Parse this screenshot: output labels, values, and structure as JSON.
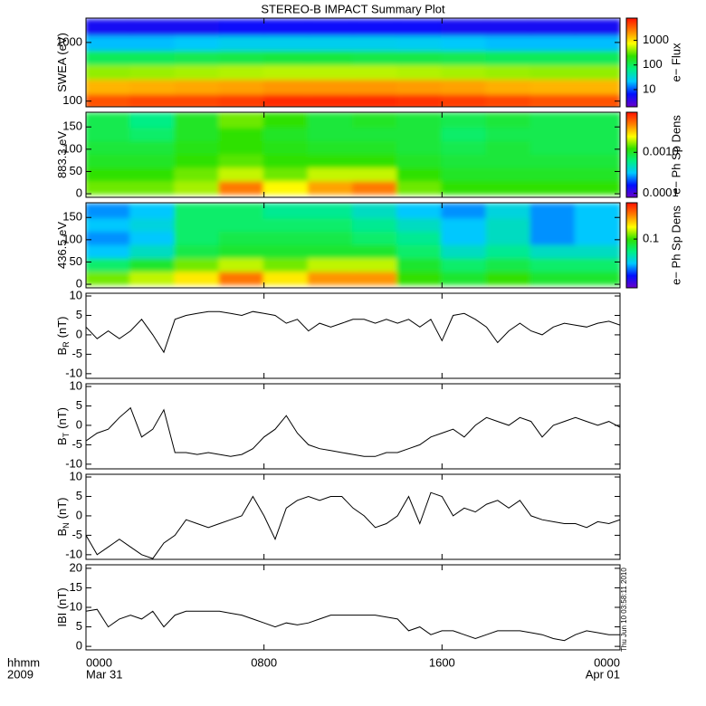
{
  "chart_data": [
    {
      "type": "heatmap",
      "title": "STEREO-B IMPACT Summary Plot",
      "ylabel": "SWEA (eV)",
      "ylog": true,
      "ylim": [
        80,
        2600
      ],
      "yticks": [
        100,
        1000
      ],
      "x": [
        1,
        3,
        5,
        7,
        9,
        11,
        13,
        15,
        17,
        19,
        21,
        23
      ],
      "y": [
        100,
        180,
        320,
        560,
        1000,
        1800
      ],
      "z": [
        [
          4000,
          4500,
          4500,
          5000,
          6000,
          6000,
          6000,
          5500,
          5000,
          4500,
          4000,
          4000
        ],
        [
          1500,
          1600,
          1700,
          1800,
          2000,
          2000,
          2000,
          1900,
          1800,
          1600,
          1500,
          1500
        ],
        [
          400,
          420,
          450,
          480,
          500,
          500,
          500,
          480,
          450,
          420,
          400,
          400
        ],
        [
          100,
          100,
          110,
          120,
          130,
          130,
          120,
          120,
          110,
          100,
          100,
          100
        ],
        [
          20,
          20,
          22,
          25,
          25,
          25,
          25,
          24,
          22,
          20,
          20,
          20
        ],
        [
          5,
          5,
          5,
          6,
          6,
          6,
          6,
          6,
          5,
          5,
          5,
          5
        ]
      ],
      "colorbar": {
        "label": "e− Flux",
        "log": true,
        "clim": [
          2,
          8000
        ],
        "ticks": [
          10,
          100,
          1000
        ]
      },
      "colormap": [
        "#6a00c8",
        "#0010ff",
        "#00c8ff",
        "#00f080",
        "#30e000",
        "#ffff00",
        "#ff8000",
        "#ff1000"
      ]
    },
    {
      "type": "heatmap",
      "ylabel": "883.3 eV",
      "ylim": [
        -8,
        183
      ],
      "yticks": [
        0,
        50,
        100,
        150
      ],
      "x": [
        1,
        3,
        5,
        7,
        9,
        11,
        13,
        15,
        17,
        19,
        21,
        23
      ],
      "y": [
        15,
        45,
        75,
        105,
        135,
        165
      ],
      "z": [
        [
          0.0015,
          0.0015,
          0.0018,
          0.005,
          0.0025,
          0.004,
          0.005,
          0.0015,
          0.0012,
          0.0012,
          0.0012,
          0.0012
        ],
        [
          0.0012,
          0.0012,
          0.0015,
          0.002,
          0.0015,
          0.002,
          0.002,
          0.0012,
          0.001,
          0.001,
          0.001,
          0.001
        ],
        [
          0.001,
          0.001,
          0.0012,
          0.0014,
          0.0012,
          0.0012,
          0.0012,
          0.001,
          0.0009,
          0.0009,
          0.0009,
          0.0009
        ],
        [
          0.0009,
          0.0009,
          0.0011,
          0.0012,
          0.0011,
          0.001,
          0.001,
          0.0009,
          0.0008,
          0.0009,
          0.0008,
          0.0008
        ],
        [
          0.0008,
          0.0007,
          0.001,
          0.0012,
          0.001,
          0.0009,
          0.0009,
          0.0009,
          0.0007,
          0.0008,
          0.0008,
          0.0008
        ],
        [
          0.0008,
          0.0006,
          0.001,
          0.0015,
          0.0012,
          0.0009,
          0.001,
          0.0009,
          0.0008,
          0.0009,
          0.0008,
          0.0008
        ]
      ],
      "colorbar": {
        "label": "e− Ph Sp Dens",
        "log": true,
        "clim": [
          8e-05,
          0.0095
        ],
        "ticks": [
          0.0001,
          {
            "value": 0.001,
            "label": "0.0010"
          }
        ]
      },
      "colormap": [
        "#6a00c8",
        "#0010ff",
        "#00c8ff",
        "#00f080",
        "#30e000",
        "#ffff00",
        "#ff8000",
        "#ff1000"
      ]
    },
    {
      "type": "heatmap",
      "ylabel": "436.5 eV",
      "ylim": [
        -8,
        183
      ],
      "yticks": [
        0,
        50,
        100,
        150
      ],
      "x": [
        1,
        3,
        5,
        7,
        9,
        11,
        13,
        15,
        17,
        19,
        21,
        23
      ],
      "y": [
        15,
        45,
        75,
        105,
        135,
        165
      ],
      "z": [
        [
          0.12,
          0.15,
          0.2,
          0.35,
          0.2,
          0.3,
          0.3,
          0.1,
          0.08,
          0.1,
          0.08,
          0.08
        ],
        [
          0.06,
          0.08,
          0.12,
          0.15,
          0.12,
          0.15,
          0.15,
          0.08,
          0.06,
          0.07,
          0.06,
          0.06
        ],
        [
          0.03,
          0.04,
          0.07,
          0.08,
          0.08,
          0.08,
          0.08,
          0.06,
          0.04,
          0.05,
          0.04,
          0.04
        ],
        [
          0.025,
          0.03,
          0.06,
          0.07,
          0.07,
          0.07,
          0.06,
          0.05,
          0.03,
          0.04,
          0.025,
          0.03
        ],
        [
          0.03,
          0.035,
          0.06,
          0.06,
          0.06,
          0.06,
          0.05,
          0.04,
          0.03,
          0.04,
          0.025,
          0.03
        ],
        [
          0.025,
          0.03,
          0.06,
          0.06,
          0.05,
          0.05,
          0.04,
          0.03,
          0.025,
          0.035,
          0.025,
          0.03
        ]
      ],
      "colorbar": {
        "label": "e− Ph Sp Dens",
        "log": true,
        "clim": [
          0.009,
          0.6
        ],
        "ticks": [
          0.1
        ]
      },
      "colormap": [
        "#6a00c8",
        "#0010ff",
        "#00c8ff",
        "#00f080",
        "#30e000",
        "#ffff00",
        "#ff8000",
        "#ff1000"
      ]
    },
    {
      "type": "line",
      "ylabel": "B",
      "ylabel_sub": "R",
      "ylabel_unit": "(nT)",
      "color": "#000000",
      "ylim": [
        -11.2,
        10.7
      ],
      "yticks": [
        -10,
        -5,
        0,
        5,
        10
      ],
      "x": [
        0,
        0.5,
        1,
        1.5,
        2,
        2.5,
        3,
        3.5,
        4,
        4.5,
        5,
        5.5,
        6,
        6.5,
        7,
        7.5,
        8,
        8.5,
        9,
        9.5,
        10,
        10.5,
        11,
        11.5,
        12,
        12.5,
        13,
        13.5,
        14,
        14.5,
        15,
        15.5,
        16,
        16.5,
        17,
        17.5,
        18,
        18.5,
        19,
        19.5,
        20,
        20.5,
        21,
        21.5,
        22,
        22.5,
        23,
        23.5,
        24
      ],
      "values": [
        2,
        -1,
        1,
        -1,
        1,
        4,
        0,
        -4.5,
        4,
        5,
        5.5,
        6,
        6,
        5.5,
        5,
        6,
        5.5,
        5,
        3,
        4,
        1,
        3,
        2,
        3,
        4,
        4,
        3,
        4,
        3,
        4,
        2,
        4,
        -1.5,
        5,
        5.5,
        4,
        2,
        -2,
        1,
        3,
        1,
        0,
        2,
        3,
        2.5,
        2,
        3,
        3.5,
        2.5
      ]
    },
    {
      "type": "line",
      "ylabel": "B",
      "ylabel_sub": "T",
      "ylabel_unit": "(nT)",
      "color": "#000000",
      "ylim": [
        -11.2,
        10.7
      ],
      "yticks": [
        -10,
        -5,
        0,
        5,
        10
      ],
      "x": [
        0,
        0.5,
        1,
        1.5,
        2,
        2.5,
        3,
        3.5,
        4,
        4.5,
        5,
        5.5,
        6,
        6.5,
        7,
        7.5,
        8,
        8.5,
        9,
        9.5,
        10,
        10.5,
        11,
        11.5,
        12,
        12.5,
        13,
        13.5,
        14,
        14.5,
        15,
        15.5,
        16,
        16.5,
        17,
        17.5,
        18,
        18.5,
        19,
        19.5,
        20,
        20.5,
        21,
        21.5,
        22,
        22.5,
        23,
        23.5,
        24
      ],
      "values": [
        -4,
        -2,
        -1,
        2,
        4.5,
        -3,
        -1,
        4,
        -7,
        -7,
        -7.5,
        -7,
        -7.5,
        -8,
        -7.5,
        -6,
        -3,
        -1,
        2.5,
        -2,
        -5,
        -6,
        -6.5,
        -7,
        -7.5,
        -8,
        -8,
        -7,
        -7,
        -6,
        -5,
        -3,
        -2,
        -1,
        -3,
        0,
        2,
        1,
        0,
        2,
        1,
        -3,
        0,
        1,
        2,
        1,
        0,
        1,
        -0.5
      ]
    },
    {
      "type": "line",
      "ylabel": "B",
      "ylabel_sub": "N",
      "ylabel_unit": "(nT)",
      "color": "#000000",
      "ylim": [
        -11.2,
        10.7
      ],
      "yticks": [
        -10,
        -5,
        0,
        5,
        10
      ],
      "x": [
        0,
        0.5,
        1,
        1.5,
        2,
        2.5,
        3,
        3.5,
        4,
        4.5,
        5,
        5.5,
        6,
        6.5,
        7,
        7.5,
        8,
        8.5,
        9,
        9.5,
        10,
        10.5,
        11,
        11.5,
        12,
        12.5,
        13,
        13.5,
        14,
        14.5,
        15,
        15.5,
        16,
        16.5,
        17,
        17.5,
        18,
        18.5,
        19,
        19.5,
        20,
        20.5,
        21,
        21.5,
        22,
        22.5,
        23,
        23.5,
        24
      ],
      "values": [
        -5,
        -10,
        -8,
        -6,
        -8,
        -10,
        -11,
        -7,
        -5,
        -1,
        -2,
        -3,
        -2,
        -1,
        0,
        5,
        0,
        -6,
        2,
        4,
        5,
        4,
        5,
        5,
        2,
        0,
        -3,
        -2,
        0,
        5,
        -2,
        6,
        5,
        0,
        2,
        1,
        3,
        4,
        2,
        4,
        0,
        -1,
        -1.5,
        -2,
        -2,
        -3,
        -1.5,
        -2,
        -1
      ]
    },
    {
      "type": "line",
      "ylabel": "IBI (nT)",
      "color": "#000000",
      "ylim": [
        -0.9,
        20.9
      ],
      "yticks": [
        0,
        5,
        10,
        15,
        20
      ],
      "x": [
        0,
        0.5,
        1,
        1.5,
        2,
        2.5,
        3,
        3.5,
        4,
        4.5,
        5,
        5.5,
        6,
        6.5,
        7,
        7.5,
        8,
        8.5,
        9,
        9.5,
        10,
        10.5,
        11,
        11.5,
        12,
        12.5,
        13,
        13.5,
        14,
        14.5,
        15,
        15.5,
        16,
        16.5,
        17,
        17.5,
        18,
        18.5,
        19,
        19.5,
        20,
        20.5,
        21,
        21.5,
        22,
        22.5,
        23,
        23.5,
        24
      ],
      "values": [
        9,
        9.5,
        5,
        7,
        8,
        7,
        9,
        5,
        8,
        9,
        9,
        9,
        9,
        8.5,
        8,
        7,
        6,
        5,
        6,
        5.5,
        6,
        7,
        8,
        8,
        8,
        8,
        8,
        7.5,
        7,
        4,
        5,
        3,
        4,
        4,
        3,
        2,
        3,
        4,
        4,
        4,
        3.5,
        3,
        2,
        1.5,
        3,
        4,
        3.5,
        3,
        3
      ],
      "xlim": [
        0,
        24
      ],
      "xticks": [
        {
          "value": 0,
          "label": "0000"
        },
        {
          "value": 8,
          "label": "0800"
        },
        {
          "value": 16,
          "label": "1600"
        },
        {
          "value": 24,
          "label": "0000"
        }
      ],
      "date_labels": [
        {
          "value": 0,
          "label": "Mar 31"
        },
        {
          "value": 24,
          "label": "Apr 01"
        }
      ],
      "x_unit_label": "hhmm",
      "year_label": "2009",
      "timestamp": "Thu Jun 10 03:58:11 2010"
    }
  ]
}
